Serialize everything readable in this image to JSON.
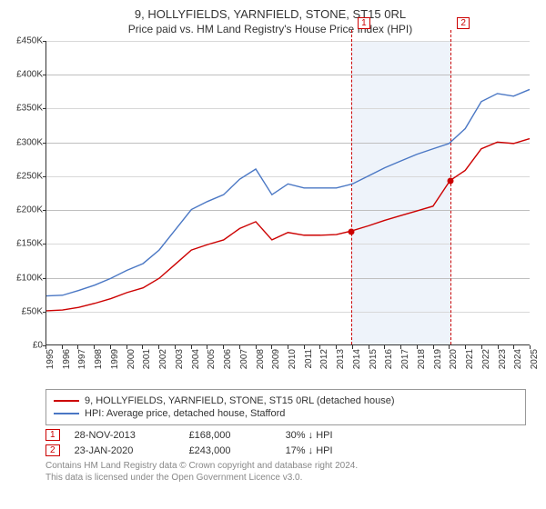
{
  "title_line1": "9, HOLLYFIELDS, YARNFIELD, STONE, ST15 0RL",
  "title_line2": "Price paid vs. HM Land Registry's House Price Index (HPI)",
  "chart": {
    "type": "line",
    "xlim": [
      1995,
      2025
    ],
    "ylim": [
      0,
      450000
    ],
    "ytick_step": 50000,
    "ytick_labels": [
      "£0",
      "£50K",
      "£100K",
      "£150K",
      "£200K",
      "£250K",
      "£300K",
      "£350K",
      "£400K",
      "£450K"
    ],
    "xtick_step": 1,
    "grid_color": "#d8d8d8",
    "grid_major_color": "#bfbfbf",
    "background_color": "#ffffff",
    "shade_start": 2013.9,
    "shade_end": 2020.06,
    "shade_color": "#eef3fa",
    "marker_line_color": "#cc0000",
    "series": [
      {
        "id": "hpi",
        "label": "HPI: Average price, detached house, Stafford",
        "color": "#4a77c4",
        "width": 1.4,
        "points": [
          [
            1995,
            72000
          ],
          [
            1996,
            73000
          ],
          [
            1997,
            80000
          ],
          [
            1998,
            88000
          ],
          [
            1999,
            98000
          ],
          [
            2000,
            110000
          ],
          [
            2001,
            120000
          ],
          [
            2002,
            140000
          ],
          [
            2003,
            170000
          ],
          [
            2004,
            200000
          ],
          [
            2005,
            212000
          ],
          [
            2006,
            222000
          ],
          [
            2007,
            245000
          ],
          [
            2008,
            260000
          ],
          [
            2009,
            222000
          ],
          [
            2010,
            238000
          ],
          [
            2011,
            232000
          ],
          [
            2012,
            232000
          ],
          [
            2013,
            232000
          ],
          [
            2014,
            238000
          ],
          [
            2015,
            250000
          ],
          [
            2016,
            262000
          ],
          [
            2017,
            272000
          ],
          [
            2018,
            282000
          ],
          [
            2019,
            290000
          ],
          [
            2020,
            298000
          ],
          [
            2021,
            320000
          ],
          [
            2022,
            360000
          ],
          [
            2023,
            372000
          ],
          [
            2024,
            368000
          ],
          [
            2025,
            378000
          ]
        ]
      },
      {
        "id": "paid",
        "label": "9, HOLLYFIELDS, YARNFIELD, STONE, ST15 0RL (detached house)",
        "color": "#cc0000",
        "width": 1.4,
        "points": [
          [
            1995,
            50000
          ],
          [
            1996,
            51000
          ],
          [
            1997,
            55000
          ],
          [
            1998,
            61000
          ],
          [
            1999,
            68000
          ],
          [
            2000,
            77000
          ],
          [
            2001,
            84000
          ],
          [
            2002,
            98000
          ],
          [
            2003,
            119000
          ],
          [
            2004,
            140000
          ],
          [
            2005,
            148000
          ],
          [
            2006,
            155000
          ],
          [
            2007,
            172000
          ],
          [
            2008,
            182000
          ],
          [
            2009,
            155000
          ],
          [
            2010,
            166000
          ],
          [
            2011,
            162000
          ],
          [
            2012,
            162000
          ],
          [
            2013,
            163000
          ],
          [
            2013.9,
            168000
          ],
          [
            2015,
            176000
          ],
          [
            2016,
            184000
          ],
          [
            2017,
            191000
          ],
          [
            2018,
            198000
          ],
          [
            2019,
            205000
          ],
          [
            2020.06,
            243000
          ],
          [
            2021,
            258000
          ],
          [
            2022,
            290000
          ],
          [
            2023,
            300000
          ],
          [
            2024,
            298000
          ],
          [
            2025,
            305000
          ]
        ]
      }
    ],
    "markers": [
      {
        "index": "1",
        "x": 2013.9,
        "y": 168000
      },
      {
        "index": "2",
        "x": 2020.06,
        "y": 243000
      }
    ],
    "dot_color": "#cc0000"
  },
  "legend": {
    "items": [
      {
        "color": "#cc0000",
        "label": "9, HOLLYFIELDS, YARNFIELD, STONE, ST15 0RL (detached house)"
      },
      {
        "color": "#4a77c4",
        "label": "HPI: Average price, detached house, Stafford"
      }
    ]
  },
  "sales": [
    {
      "index": "1",
      "date": "28-NOV-2013",
      "price": "£168,000",
      "diff": "30% ↓ HPI"
    },
    {
      "index": "2",
      "date": "23-JAN-2020",
      "price": "£243,000",
      "diff": "17% ↓ HPI"
    }
  ],
  "footnote_line1": "Contains HM Land Registry data © Crown copyright and database right 2024.",
  "footnote_line2": "This data is licensed under the Open Government Licence v3.0."
}
